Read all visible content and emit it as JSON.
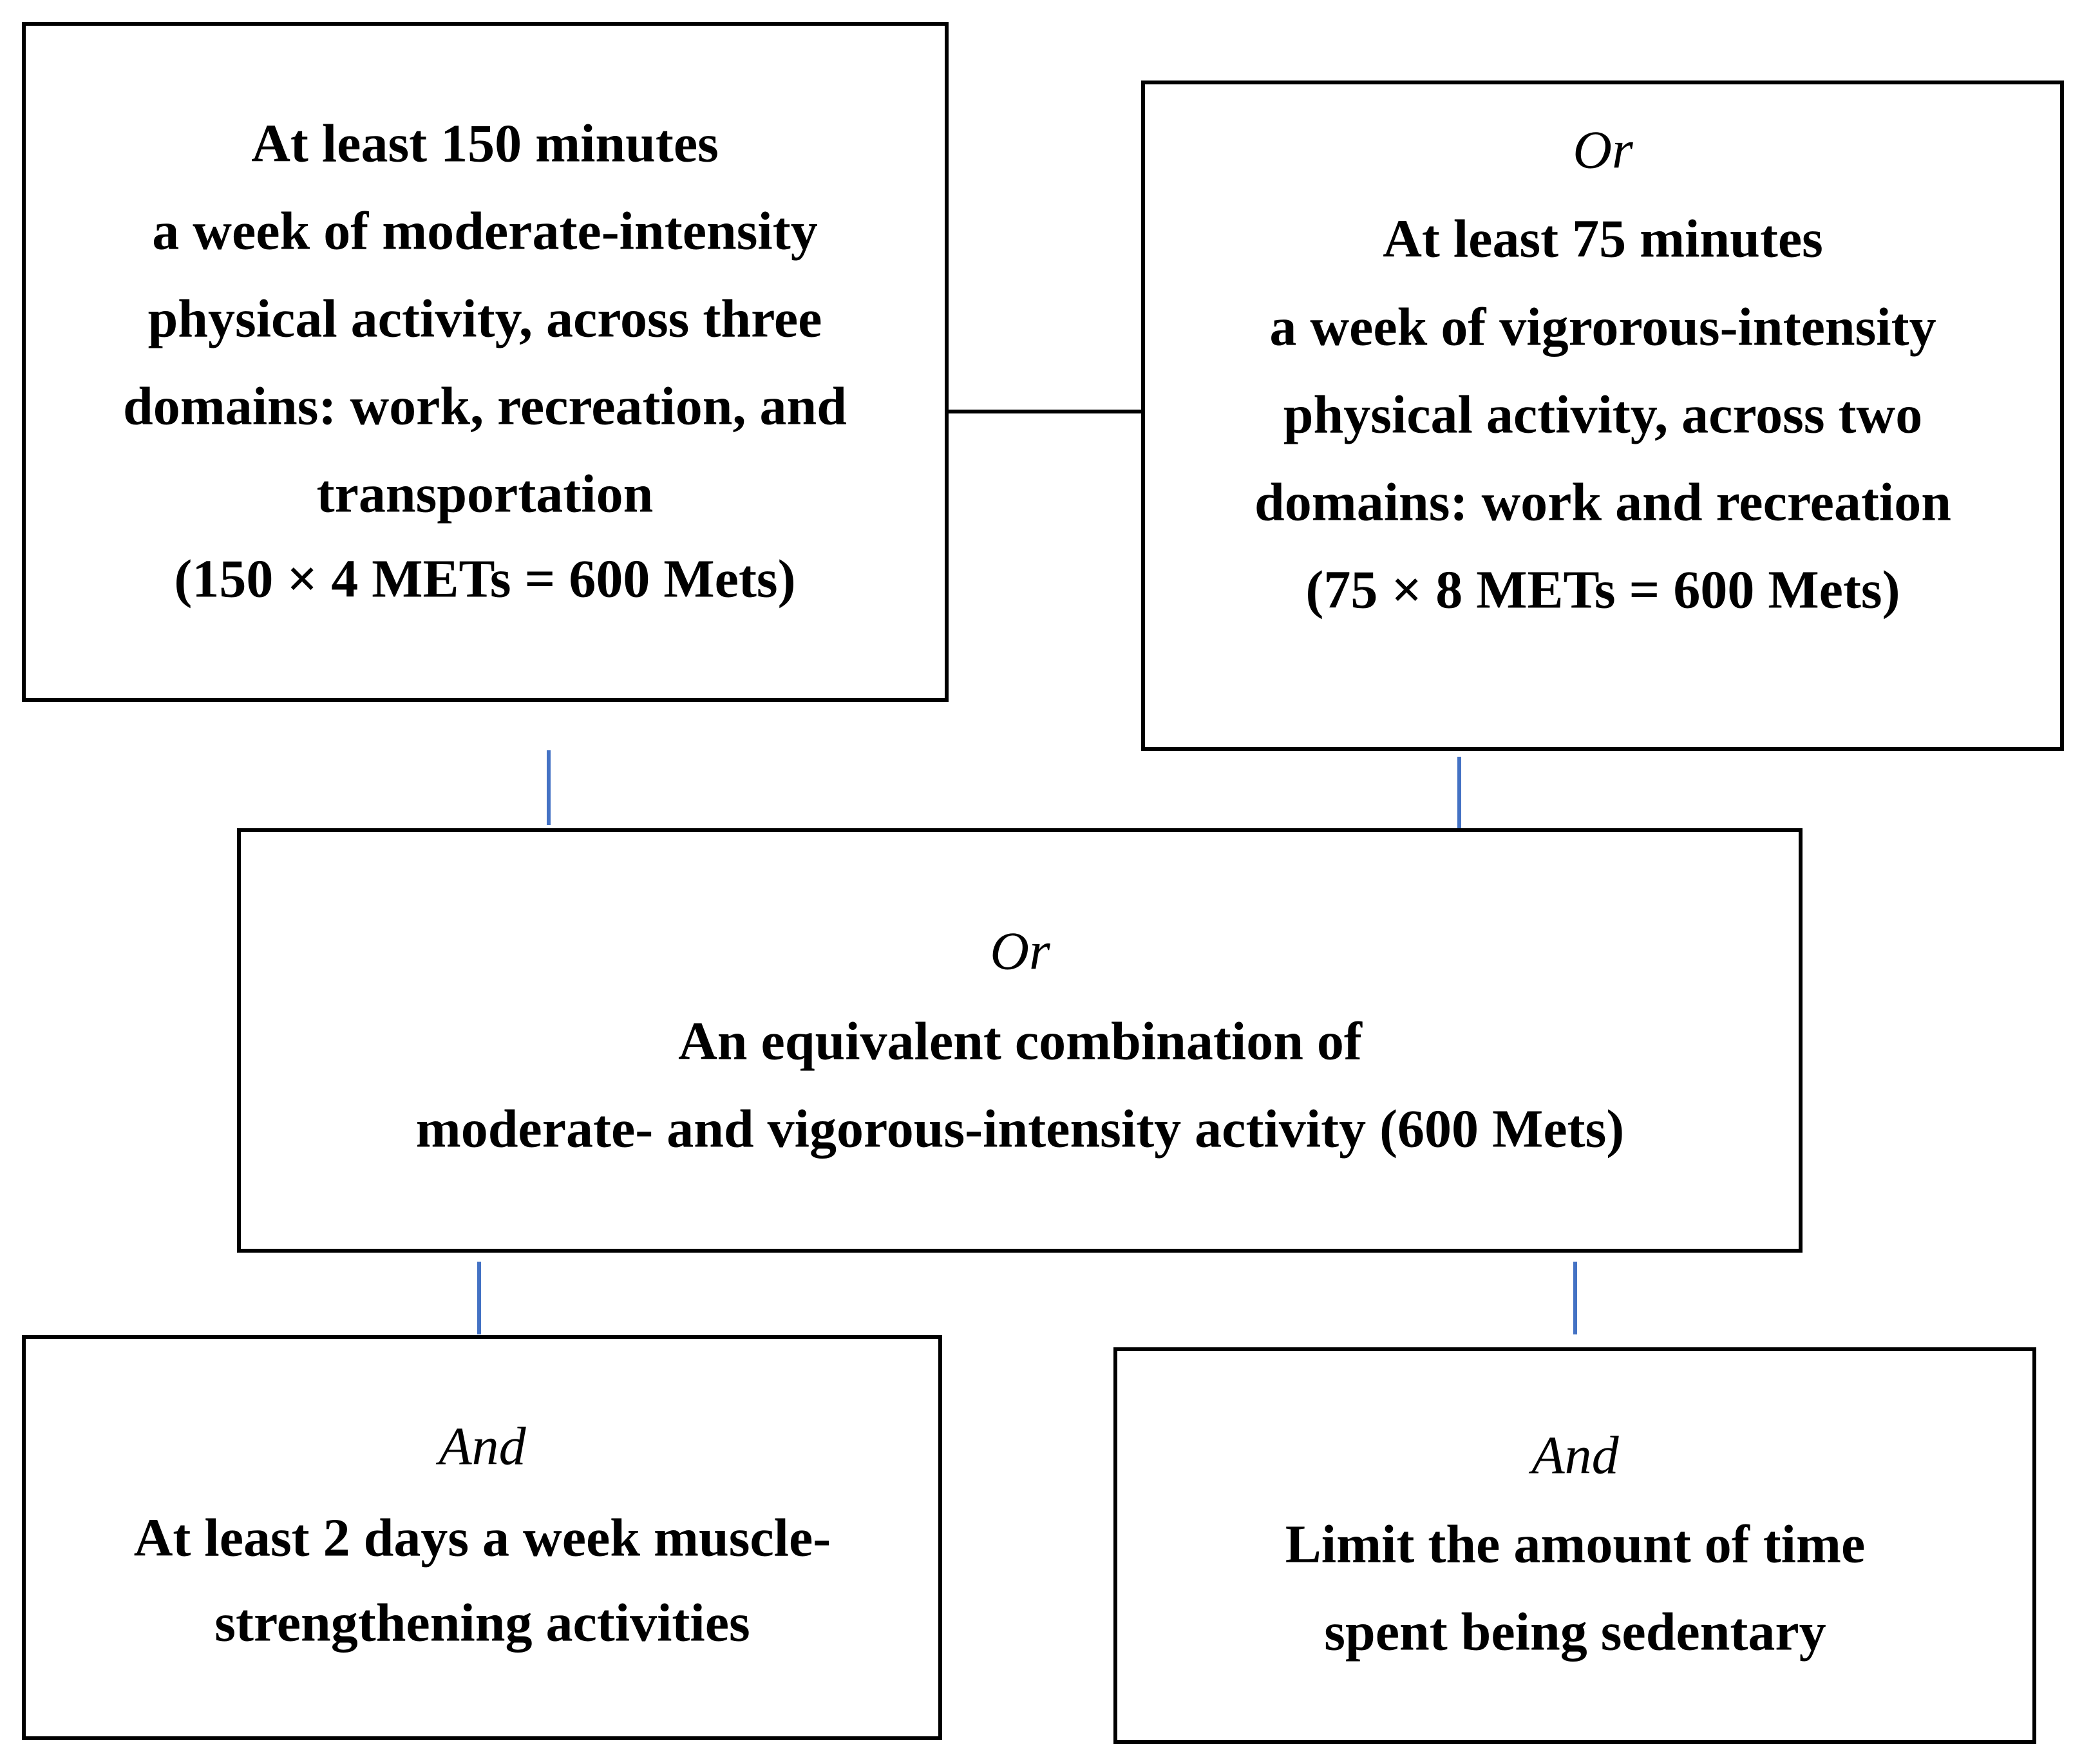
{
  "nodes": [
    {
      "lines": [
        "At least 150 minutes",
        "a week of moderate-intensity",
        "physical activity, across three",
        "domains: work, recreation, and",
        "transportation",
        "(150 × 4 METs = 600 Mets)"
      ]
    },
    {
      "connector": "Or",
      "lines": [
        "At least 75 minutes",
        "a week of vigrorous-intensity",
        "physical activity, across two",
        "domains: work and recreation",
        "(75 × 8 METs = 600 Mets)"
      ]
    },
    {
      "connector": "Or",
      "lines": [
        "An equivalent combination of",
        "moderate- and vigorous-intensity activity (600 Mets)"
      ]
    },
    {
      "connector": "And",
      "lines": [
        "At least 2 days a week muscle-",
        "strengthening activities"
      ]
    },
    {
      "connector": "And",
      "lines": [
        "Limit the amount of time",
        "spent being sedentary"
      ]
    }
  ]
}
